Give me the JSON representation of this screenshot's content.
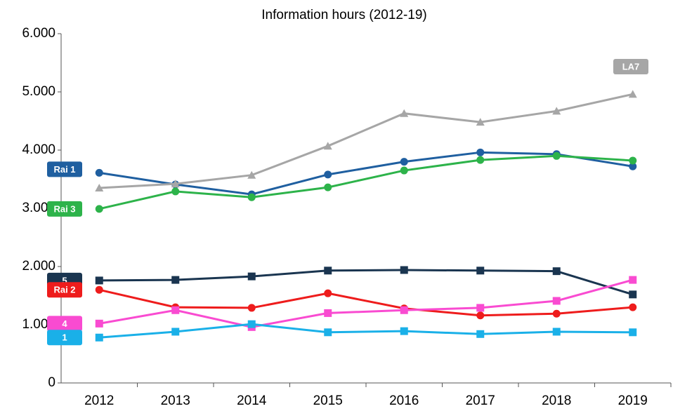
{
  "chart_data": {
    "type": "line",
    "title": "Information hours (2012-19)",
    "categories": [
      "2012",
      "2013",
      "2014",
      "2015",
      "2016",
      "2017",
      "2018",
      "2019"
    ],
    "ylim": [
      0,
      6000
    ],
    "yticks": [
      0,
      {
        "value": 1000,
        "label": "1.000"
      },
      {
        "value": 2000,
        "label": "2.000"
      },
      {
        "value": 3000,
        "label": "3.000"
      },
      {
        "value": 4000,
        "label": "4.000"
      },
      {
        "value": 5000,
        "label": "5.000"
      },
      {
        "value": 6000,
        "label": "6.000"
      }
    ],
    "grid": false,
    "series": [
      {
        "name": "Rai 1",
        "color": "#1f5fa0",
        "marker": "circle",
        "values": [
          3610,
          3410,
          3240,
          3580,
          3800,
          3960,
          3930,
          3720
        ]
      },
      {
        "name": "Rai 3",
        "color": "#2db34a",
        "marker": "circle",
        "values": [
          2990,
          3290,
          3190,
          3360,
          3650,
          3830,
          3900,
          3820
        ]
      },
      {
        "name": "LA7",
        "color": "#a6a6a6",
        "marker": "triangle",
        "values": [
          3350,
          3420,
          3570,
          4070,
          4630,
          4480,
          4670,
          4960
        ]
      },
      {
        "name": "5",
        "color": "#1a3550",
        "marker": "square",
        "values": [
          1760,
          1770,
          1830,
          1930,
          1940,
          1930,
          1920,
          1520
        ]
      },
      {
        "name": "Rai 2",
        "color": "#ee1c1c",
        "marker": "circle",
        "values": [
          1600,
          1300,
          1290,
          1540,
          1280,
          1160,
          1190,
          1300
        ]
      },
      {
        "name": "4",
        "color": "#f94bd1",
        "marker": "square",
        "values": [
          1020,
          1250,
          960,
          1200,
          1250,
          1290,
          1410,
          1770
        ]
      },
      {
        "name": "1",
        "color": "#1ab0e8",
        "marker": "square",
        "values": [
          780,
          880,
          1010,
          870,
          890,
          840,
          880,
          870
        ]
      }
    ]
  }
}
